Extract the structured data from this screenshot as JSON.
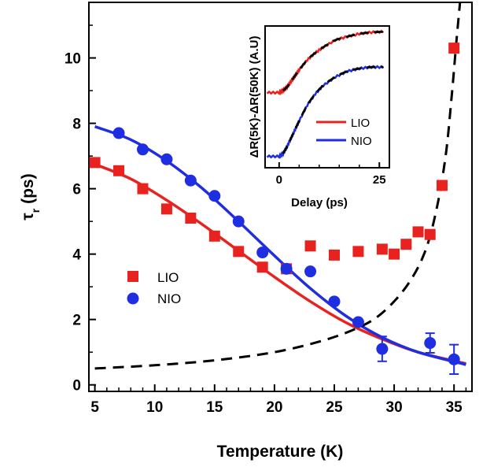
{
  "chart_data": [
    {
      "type": "scatter",
      "title": "",
      "xlabel": "Temperature (K)",
      "ylabel_main": "τ",
      "ylabel_sub": "r",
      "ylabel_unit": " (ps)",
      "xlim": [
        4.5,
        36.5
      ],
      "ylim": [
        -0.2,
        11.7
      ],
      "x_ticks": [
        5,
        10,
        15,
        20,
        25,
        30,
        35
      ],
      "y_ticks": [
        0,
        2,
        4,
        6,
        8,
        10
      ],
      "grid": false,
      "legend_position": "center-left",
      "colors": {
        "LIO": "#e8231f",
        "NIO": "#1f2ee0",
        "fit_dashed": "#000000"
      },
      "series": [
        {
          "name": "LIO",
          "marker": "square",
          "x": [
            5,
            7,
            9,
            11,
            13,
            15,
            17,
            19,
            21,
            23,
            25,
            27,
            29,
            30,
            31,
            32,
            33,
            34,
            35
          ],
          "y": [
            6.8,
            6.55,
            6.0,
            5.38,
            5.1,
            4.55,
            4.08,
            3.6,
            3.55,
            4.25,
            3.97,
            4.08,
            4.15,
            4.0,
            4.3,
            4.68,
            4.6,
            6.1,
            10.3
          ]
        },
        {
          "name": "NIO",
          "marker": "circle",
          "x": [
            7,
            9,
            11,
            13,
            15,
            17,
            19,
            21,
            23,
            25,
            27,
            29,
            33,
            35
          ],
          "y": [
            7.7,
            7.2,
            6.9,
            6.25,
            5.78,
            5.0,
            4.05,
            3.55,
            3.47,
            2.55,
            1.92,
            1.1,
            1.28,
            0.78
          ],
          "yerr": [
            0,
            0,
            0,
            0,
            0,
            0,
            0,
            0,
            0,
            0,
            0,
            0.38,
            0.3,
            0.45
          ]
        }
      ],
      "fits": {
        "LIO": {
          "x": [
            5,
            8,
            11,
            14,
            17,
            20,
            23,
            26,
            29,
            32,
            36
          ],
          "y": [
            6.75,
            6.3,
            5.65,
            4.9,
            4.1,
            3.3,
            2.55,
            1.9,
            1.4,
            1.0,
            0.65
          ]
        },
        "NIO": {
          "x": [
            5,
            8,
            11,
            14,
            17,
            20,
            23,
            26,
            29,
            32,
            36
          ],
          "y": [
            7.9,
            7.5,
            6.85,
            6.0,
            5.0,
            3.95,
            2.95,
            2.1,
            1.45,
            1.0,
            0.62
          ]
        },
        "dashed": {
          "x": [
            5,
            10,
            15,
            20,
            24,
            27,
            29,
            31,
            32.5,
            33.5,
            34.3,
            34.8,
            35.2,
            35.5
          ],
          "y": [
            0.5,
            0.6,
            0.75,
            1.0,
            1.35,
            1.75,
            2.2,
            3.0,
            4.0,
            5.3,
            7.0,
            8.8,
            10.5,
            11.7
          ]
        }
      }
    },
    {
      "type": "line",
      "title": "",
      "xlabel": "Delay (ps)",
      "ylabel": "ΔR(5K)-ΔR(50K) (A.U)",
      "xlim": [
        -3.5,
        27.5
      ],
      "ylim": [
        0,
        1
      ],
      "x_ticks": [
        0,
        25
      ],
      "legend_position": "right",
      "series": [
        {
          "name": "LIO",
          "x": [
            -3,
            0,
            1,
            2,
            3,
            4,
            5,
            7,
            9,
            11,
            14,
            17,
            20,
            23,
            26
          ],
          "y": [
            0.53,
            0.53,
            0.545,
            0.57,
            0.61,
            0.65,
            0.69,
            0.76,
            0.81,
            0.85,
            0.9,
            0.925,
            0.945,
            0.955,
            0.96
          ]
        },
        {
          "name": "NIO",
          "x": [
            -3,
            0,
            1,
            2,
            3,
            4,
            5,
            7,
            9,
            11,
            14,
            17,
            20,
            23,
            26
          ],
          "y": [
            0.08,
            0.08,
            0.1,
            0.15,
            0.21,
            0.27,
            0.33,
            0.44,
            0.52,
            0.58,
            0.64,
            0.68,
            0.7,
            0.71,
            0.71
          ]
        }
      ]
    }
  ]
}
